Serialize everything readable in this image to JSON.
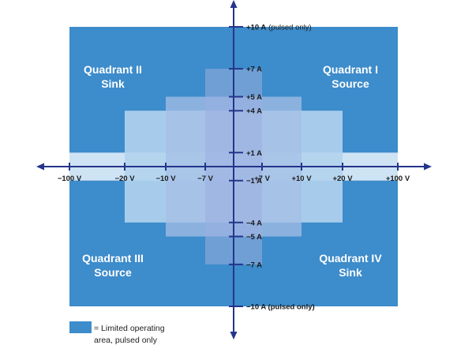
{
  "colors": {
    "limited_area": "#3d8ccb",
    "region_ab": "#b2d3ee",
    "region_c": "#a5bfe6",
    "region_d": "#9aaee0",
    "band": "#d6e8f5",
    "axis": "#25358a",
    "text": "#1b1b1b",
    "quadrant_text": "#ffffff"
  },
  "quadrants": {
    "q2": {
      "title": "Quadrant II",
      "mode": "Sink"
    },
    "q1": {
      "title": "Quadrant I",
      "mode": "Source"
    },
    "q3": {
      "title": "Quadrant III",
      "mode": "Source"
    },
    "q4": {
      "title": "Quadrant IV",
      "mode": "Sink"
    }
  },
  "x_ticks": [
    {
      "value": -100,
      "label": "−100 V"
    },
    {
      "value": -20,
      "label": "−20 V"
    },
    {
      "value": -10,
      "label": "−10 V"
    },
    {
      "value": -7,
      "label": "−7 V"
    },
    {
      "value": 7,
      "label": "+7 V"
    },
    {
      "value": 10,
      "label": "+10 V"
    },
    {
      "value": 20,
      "label": "+20 V"
    },
    {
      "value": 100,
      "label": "+100 V"
    }
  ],
  "y_ticks": [
    {
      "value": 10,
      "label": "+10 A",
      "note": "(pulsed only)"
    },
    {
      "value": 7,
      "label": "+7 A"
    },
    {
      "value": 5,
      "label": "+5 A"
    },
    {
      "value": 4,
      "label": "+4 A"
    },
    {
      "value": 1,
      "label": "+1 A"
    },
    {
      "value": -1,
      "label": "−1 A"
    },
    {
      "value": -4,
      "label": "−4 A"
    },
    {
      "value": -5,
      "label": "−5 A"
    },
    {
      "value": -7,
      "label": "−7 A"
    },
    {
      "value": -10,
      "label": "−10 A (pulsed only)"
    }
  ],
  "regions": [
    {
      "v": 100,
      "i": 1,
      "fill": "band",
      "opacity": 0.95
    },
    {
      "v": 20,
      "i": 4,
      "fill": "region_ab",
      "opacity": 0.9
    },
    {
      "v": 10,
      "i": 5,
      "fill": "region_c",
      "opacity": 0.75
    },
    {
      "v": 7,
      "i": 7,
      "fill": "region_d",
      "opacity": 0.55
    }
  ],
  "outer_limit": {
    "v": 100,
    "i": 10
  },
  "legend": {
    "line1": "= Limited operating",
    "line2": "area, pulsed only"
  }
}
